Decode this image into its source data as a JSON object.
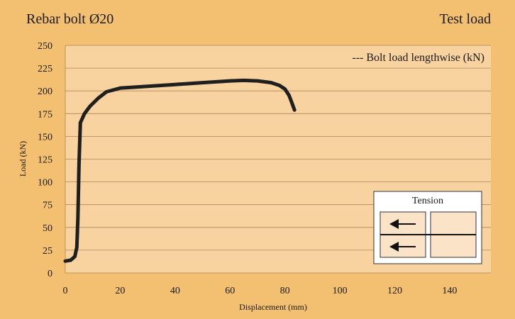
{
  "header": {
    "title": "Rebar bolt Ø20",
    "subtitle": "Test load"
  },
  "colors": {
    "background": "#f3bf70",
    "plot_background": "#f8d39f",
    "grid": "#b0855a",
    "line": "#1f1f1f",
    "inset_background": "#ffffff",
    "inset_box": "#fbe3c8"
  },
  "chart_data": {
    "type": "line",
    "xlabel": "Displacement (mm)",
    "ylabel": "Load (kN)",
    "xlim": [
      0,
      155
    ],
    "ylim": [
      0,
      250
    ],
    "x_ticks": [
      0,
      20,
      40,
      60,
      80,
      100,
      120,
      140
    ],
    "y_ticks": [
      0,
      25,
      50,
      75,
      100,
      125,
      150,
      175,
      200,
      225,
      250
    ],
    "grid": true,
    "legend_position": "top-right",
    "series": [
      {
        "name": "Bolt load lengthwise (kN)",
        "legend_label": "--- Bolt load lengthwise (kN)",
        "x": [
          0,
          2,
          3.5,
          4.2,
          4.6,
          5.0,
          5.5,
          7,
          9,
          12,
          15,
          20,
          30,
          40,
          50,
          60,
          65,
          70,
          75,
          78,
          80,
          81.5,
          82.5,
          83.5
        ],
        "y": [
          13,
          14,
          18,
          28,
          60,
          120,
          165,
          175,
          183,
          192,
          199,
          203,
          205,
          207,
          209,
          211,
          211.5,
          211,
          209,
          206,
          202,
          195,
          187,
          179
        ]
      }
    ]
  },
  "inset": {
    "title": "Tension",
    "icons": [
      "arrow-left-icon",
      "arrow-left-icon"
    ]
  }
}
